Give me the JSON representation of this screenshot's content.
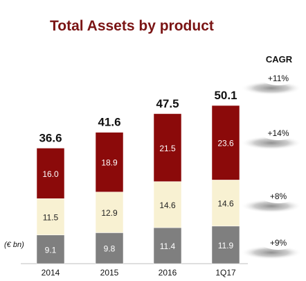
{
  "chart_data": {
    "type": "bar",
    "stacked": true,
    "title": "Total Assets by product",
    "unit_label": "(€ bn)",
    "categories": [
      "2014",
      "2015",
      "2016",
      "1Q17"
    ],
    "series": [
      {
        "values": [
          9.1,
          9.8,
          11.4,
          11.9
        ],
        "color": "#7f7f7f",
        "label_color": "#ffffff"
      },
      {
        "values": [
          11.5,
          12.9,
          14.6,
          14.6
        ],
        "color": "#f8f1d2",
        "label_color": "#222222"
      },
      {
        "values": [
          16.0,
          18.9,
          21.5,
          23.6
        ],
        "color": "#8b0a0a",
        "label_color": "#ffffff"
      }
    ],
    "totals": [
      36.6,
      41.6,
      47.5,
      50.1
    ],
    "cagr": {
      "header": "CAGR",
      "values": [
        "+11%",
        "+14%",
        "+8%",
        "+9%"
      ]
    },
    "grid": false,
    "legend": "none"
  },
  "colors": {
    "title": "#7a1414",
    "text": "#111111",
    "axis": "#bfbfbf",
    "cagr_bubble": "#ffffff",
    "cagr_shadow": "#9a9a9a"
  }
}
